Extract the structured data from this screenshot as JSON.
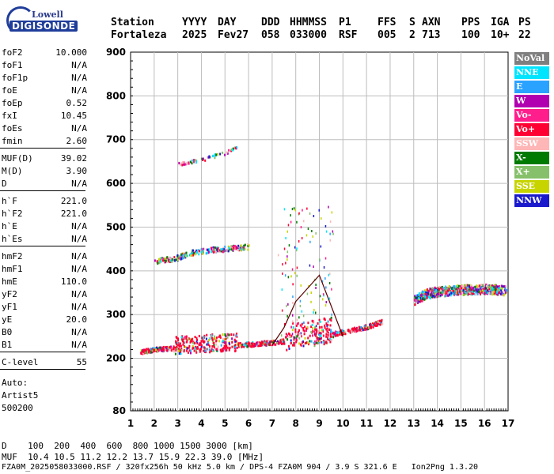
{
  "logo": {
    "line1": "Lowell",
    "line2": "DIGISONDE"
  },
  "header": {
    "labels": [
      "Station",
      "YYYY",
      "DAY",
      "DDD",
      "HHMMSS",
      "P1",
      "FFS",
      "S",
      "AXN",
      "PPS",
      "IGA",
      "PS"
    ],
    "values": [
      "Fortaleza",
      "2025",
      "Fev27",
      "058",
      "033000",
      "RSF",
      "005",
      "2",
      "713",
      "100",
      "10+",
      "22"
    ]
  },
  "params": {
    "group1": [
      {
        "name": "foF2",
        "value": "10.000"
      },
      {
        "name": "foF1",
        "value": "N/A"
      },
      {
        "name": "foF1p",
        "value": "N/A"
      },
      {
        "name": "foE",
        "value": "N/A"
      },
      {
        "name": "foEp",
        "value": "0.52"
      },
      {
        "name": "fxI",
        "value": "10.45"
      },
      {
        "name": "foEs",
        "value": "N/A"
      },
      {
        "name": "fmin",
        "value": "2.60"
      }
    ],
    "group2": [
      {
        "name": "MUF(D)",
        "value": "39.02"
      },
      {
        "name": "M(D)",
        "value": "3.90"
      },
      {
        "name": "D",
        "value": "N/A"
      }
    ],
    "group3": [
      {
        "name": "h`F",
        "value": "221.0"
      },
      {
        "name": "h`F2",
        "value": "221.0"
      },
      {
        "name": "h`E",
        "value": "N/A"
      },
      {
        "name": "h`Es",
        "value": "N/A"
      }
    ],
    "group4": [
      {
        "name": "hmF2",
        "value": "N/A"
      },
      {
        "name": "hmF1",
        "value": "N/A"
      },
      {
        "name": "hmE",
        "value": "110.0"
      },
      {
        "name": "yF2",
        "value": "N/A"
      },
      {
        "name": "yF1",
        "value": "N/A"
      },
      {
        "name": "yE",
        "value": "20.0"
      },
      {
        "name": "B0",
        "value": "N/A"
      },
      {
        "name": "B1",
        "value": "N/A"
      }
    ],
    "group5": [
      {
        "name": "C-level",
        "value": "55"
      }
    ],
    "auto": [
      "Auto:",
      "Artist5",
      "500200"
    ]
  },
  "legend": [
    {
      "label": "NoVal",
      "color": "#7f7f7f"
    },
    {
      "label": "NNE",
      "color": "#00e5ff"
    },
    {
      "label": "E",
      "color": "#2aa2ff"
    },
    {
      "label": "W",
      "color": "#b000b0"
    },
    {
      "label": "Vo-",
      "color": "#ff1e8c"
    },
    {
      "label": "Vo+",
      "color": "#ff0033"
    },
    {
      "label": "SSW",
      "color": "#ffb6b6"
    },
    {
      "label": "X-",
      "color": "#007a00"
    },
    {
      "label": "X+",
      "color": "#86c06a"
    },
    {
      "label": "SSE",
      "color": "#c8d400"
    },
    {
      "label": "NNW",
      "color": "#1a1acc"
    }
  ],
  "bottom": {
    "d_row": "D    100  200  400  600  800 1000 1500 3000 [km]",
    "muf_row": "MUF  10.4 10.5 11.2 12.2 13.7 15.9 22.3 39.0 [MHz]",
    "footer": "FZA0M_2025058033000.RSF / 320fx256h 50 kHz 5.0 km / DPS-4 FZA0M 904 / 3.9 S 321.6 E   Ion2Png 1.3.20"
  },
  "chart_data": {
    "type": "scatter",
    "xlim": [
      1,
      17
    ],
    "ylim": [
      80,
      900
    ],
    "x_ticks": [
      1,
      2,
      3,
      4,
      5,
      6,
      7,
      8,
      9,
      10,
      11,
      12,
      13,
      14,
      15,
      16,
      17
    ],
    "y_ticks": [
      80,
      200,
      300,
      400,
      500,
      600,
      700,
      800,
      900
    ],
    "grid": true,
    "legend_position": "right",
    "traces": [
      {
        "name": "F-layer O-trace",
        "x": [
          1.4,
          2,
          3,
          4,
          5,
          6,
          7,
          8,
          9,
          10,
          11,
          11.7
        ],
        "y": [
          215,
          220,
          225,
          228,
          230,
          232,
          236,
          242,
          250,
          260,
          272,
          285
        ]
      },
      {
        "name": "F-layer X-trace",
        "x": [
          13,
          13.5,
          14,
          14.5,
          15,
          15.5,
          16,
          16.5,
          16.9
        ],
        "y": [
          330,
          345,
          350,
          352,
          354,
          355,
          356,
          355,
          352
        ]
      },
      {
        "name": "Second hop",
        "x": [
          2.0,
          2.5,
          3,
          3.5,
          4,
          4.5,
          5,
          5.5,
          6.0
        ],
        "y": [
          422,
          425,
          430,
          440,
          445,
          448,
          450,
          452,
          455
        ]
      },
      {
        "name": "Third hop",
        "x": [
          3,
          4,
          5,
          5.5
        ],
        "y": [
          645,
          655,
          670,
          685
        ]
      }
    ],
    "profile_curve": {
      "x": [
        7.0,
        7.5,
        8.0,
        8.5,
        9.0,
        9.5,
        10.0
      ],
      "y": [
        230,
        270,
        330,
        360,
        390,
        320,
        250
      ]
    }
  }
}
